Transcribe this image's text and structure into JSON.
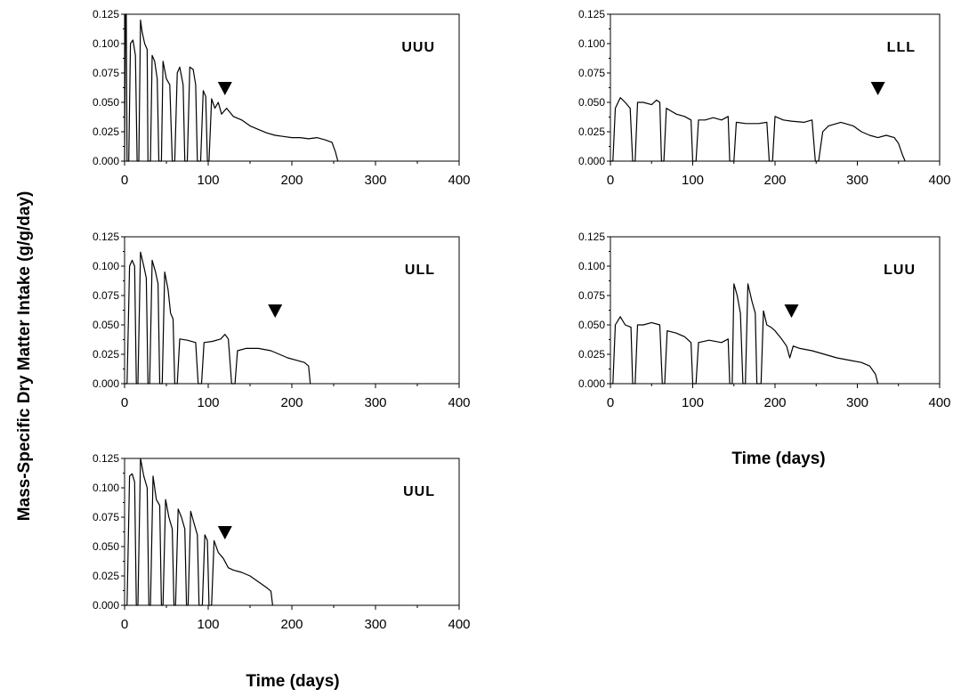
{
  "figure": {
    "ylabel": "Mass-Specific Dry Matter Intake (g/g/day)",
    "xlabel": "Time (days)"
  },
  "chart_data": [
    {
      "type": "line",
      "panel": "UUU",
      "xlim": [
        0,
        400
      ],
      "ylim": [
        0,
        0.125
      ],
      "x_ticks": [
        0,
        100,
        200,
        300,
        400
      ],
      "y_ticks": [
        "0.000",
        "0.025",
        "0.050",
        "0.075",
        "0.100",
        "0.125"
      ],
      "marker_x": 120,
      "points": [
        [
          0,
          0
        ],
        [
          1,
          0.125
        ],
        [
          2,
          0.125
        ],
        [
          3,
          0
        ],
        [
          5,
          0
        ],
        [
          7,
          0.1
        ],
        [
          10,
          0.103
        ],
        [
          13,
          0.09
        ],
        [
          15,
          0
        ],
        [
          17,
          0
        ],
        [
          19,
          0.12
        ],
        [
          21,
          0.11
        ],
        [
          24,
          0.1
        ],
        [
          27,
          0.095
        ],
        [
          28,
          0
        ],
        [
          31,
          0
        ],
        [
          33,
          0.09
        ],
        [
          36,
          0.085
        ],
        [
          39,
          0.07
        ],
        [
          41,
          0
        ],
        [
          44,
          0
        ],
        [
          46,
          0.085
        ],
        [
          50,
          0.07
        ],
        [
          54,
          0.065
        ],
        [
          57,
          0
        ],
        [
          60,
          0
        ],
        [
          63,
          0.075
        ],
        [
          66,
          0.08
        ],
        [
          70,
          0.065
        ],
        [
          72,
          0
        ],
        [
          75,
          0
        ],
        [
          78,
          0.08
        ],
        [
          82,
          0.078
        ],
        [
          85,
          0.065
        ],
        [
          87,
          0
        ],
        [
          91,
          0
        ],
        [
          94,
          0.06
        ],
        [
          97,
          0.055
        ],
        [
          99,
          0
        ],
        [
          101,
          0
        ],
        [
          104,
          0.053
        ],
        [
          108,
          0.045
        ],
        [
          112,
          0.05
        ],
        [
          116,
          0.04
        ],
        [
          122,
          0.045
        ],
        [
          130,
          0.038
        ],
        [
          140,
          0.035
        ],
        [
          150,
          0.03
        ],
        [
          160,
          0.027
        ],
        [
          170,
          0.024
        ],
        [
          180,
          0.022
        ],
        [
          190,
          0.021
        ],
        [
          200,
          0.02
        ],
        [
          210,
          0.02
        ],
        [
          220,
          0.019
        ],
        [
          230,
          0.02
        ],
        [
          240,
          0.018
        ],
        [
          248,
          0.016
        ],
        [
          252,
          0.008
        ],
        [
          255,
          0
        ]
      ]
    },
    {
      "type": "line",
      "panel": "LLL",
      "xlim": [
        0,
        400
      ],
      "ylim": [
        0,
        0.125
      ],
      "x_ticks": [
        0,
        100,
        200,
        300,
        400
      ],
      "y_ticks": [
        "0.000",
        "0.025",
        "0.050",
        "0.075",
        "0.100",
        "0.125"
      ],
      "marker_x": 325,
      "points": [
        [
          0,
          0
        ],
        [
          3,
          0
        ],
        [
          6,
          0.045
        ],
        [
          12,
          0.054
        ],
        [
          18,
          0.05
        ],
        [
          24,
          0.045
        ],
        [
          27,
          0
        ],
        [
          30,
          0
        ],
        [
          33,
          0.05
        ],
        [
          40,
          0.05
        ],
        [
          50,
          0.048
        ],
        [
          56,
          0.052
        ],
        [
          60,
          0.05
        ],
        [
          62,
          0
        ],
        [
          65,
          0
        ],
        [
          68,
          0.045
        ],
        [
          80,
          0.04
        ],
        [
          90,
          0.038
        ],
        [
          98,
          0.035
        ],
        [
          100,
          0
        ],
        [
          104,
          0
        ],
        [
          107,
          0.035
        ],
        [
          115,
          0.035
        ],
        [
          125,
          0.037
        ],
        [
          135,
          0.035
        ],
        [
          143,
          0.038
        ],
        [
          145,
          0
        ],
        [
          150,
          0
        ],
        [
          153,
          0.033
        ],
        [
          165,
          0.032
        ],
        [
          180,
          0.032
        ],
        [
          190,
          0.033
        ],
        [
          193,
          0
        ],
        [
          197,
          0
        ],
        [
          200,
          0.038
        ],
        [
          210,
          0.035
        ],
        [
          220,
          0.034
        ],
        [
          235,
          0.033
        ],
        [
          245,
          0.035
        ],
        [
          249,
          0
        ],
        [
          253,
          0
        ],
        [
          258,
          0.025
        ],
        [
          265,
          0.03
        ],
        [
          280,
          0.033
        ],
        [
          295,
          0.03
        ],
        [
          305,
          0.025
        ],
        [
          315,
          0.022
        ],
        [
          325,
          0.02
        ],
        [
          335,
          0.022
        ],
        [
          345,
          0.02
        ],
        [
          350,
          0.015
        ],
        [
          355,
          0.005
        ],
        [
          358,
          0
        ]
      ]
    },
    {
      "type": "line",
      "panel": "ULL",
      "xlim": [
        0,
        400
      ],
      "ylim": [
        0,
        0.125
      ],
      "x_ticks": [
        0,
        100,
        200,
        300,
        400
      ],
      "y_ticks": [
        "0.000",
        "0.025",
        "0.050",
        "0.075",
        "0.100",
        "0.125"
      ],
      "marker_x": 180,
      "points": [
        [
          0,
          0
        ],
        [
          3,
          0
        ],
        [
          6,
          0.1
        ],
        [
          9,
          0.105
        ],
        [
          12,
          0.1
        ],
        [
          14,
          0
        ],
        [
          16,
          0
        ],
        [
          19,
          0.112
        ],
        [
          23,
          0.1
        ],
        [
          26,
          0.09
        ],
        [
          28,
          0
        ],
        [
          30,
          0
        ],
        [
          33,
          0.105
        ],
        [
          37,
          0.095
        ],
        [
          40,
          0.085
        ],
        [
          42,
          0
        ],
        [
          45,
          0
        ],
        [
          48,
          0.095
        ],
        [
          52,
          0.08
        ],
        [
          55,
          0.06
        ],
        [
          58,
          0.055
        ],
        [
          60,
          0
        ],
        [
          63,
          0
        ],
        [
          66,
          0.038
        ],
        [
          75,
          0.037
        ],
        [
          85,
          0.035
        ],
        [
          88,
          0
        ],
        [
          92,
          0
        ],
        [
          95,
          0.035
        ],
        [
          105,
          0.036
        ],
        [
          115,
          0.038
        ],
        [
          120,
          0.042
        ],
        [
          124,
          0.038
        ],
        [
          128,
          0
        ],
        [
          132,
          0
        ],
        [
          135,
          0.028
        ],
        [
          145,
          0.03
        ],
        [
          160,
          0.03
        ],
        [
          175,
          0.028
        ],
        [
          185,
          0.025
        ],
        [
          195,
          0.022
        ],
        [
          205,
          0.02
        ],
        [
          215,
          0.018
        ],
        [
          220,
          0.015
        ],
        [
          222,
          0
        ]
      ]
    },
    {
      "type": "line",
      "panel": "LUU",
      "xlim": [
        0,
        400
      ],
      "ylim": [
        0,
        0.125
      ],
      "x_ticks": [
        0,
        100,
        200,
        300,
        400
      ],
      "y_ticks": [
        "0.000",
        "0.025",
        "0.050",
        "0.075",
        "0.100",
        "0.125"
      ],
      "marker_x": 220,
      "points": [
        [
          0,
          0
        ],
        [
          3,
          0
        ],
        [
          6,
          0.05
        ],
        [
          12,
          0.057
        ],
        [
          18,
          0.05
        ],
        [
          25,
          0.048
        ],
        [
          27,
          0
        ],
        [
          30,
          0
        ],
        [
          33,
          0.05
        ],
        [
          40,
          0.05
        ],
        [
          50,
          0.052
        ],
        [
          60,
          0.05
        ],
        [
          63,
          0
        ],
        [
          66,
          0
        ],
        [
          69,
          0.045
        ],
        [
          80,
          0.043
        ],
        [
          90,
          0.04
        ],
        [
          98,
          0.035
        ],
        [
          100,
          0
        ],
        [
          104,
          0
        ],
        [
          107,
          0.035
        ],
        [
          120,
          0.037
        ],
        [
          135,
          0.035
        ],
        [
          143,
          0.038
        ],
        [
          145,
          0
        ],
        [
          148,
          0
        ],
        [
          150,
          0.085
        ],
        [
          154,
          0.075
        ],
        [
          158,
          0.06
        ],
        [
          161,
          0
        ],
        [
          164,
          0
        ],
        [
          167,
          0.085
        ],
        [
          172,
          0.07
        ],
        [
          176,
          0.06
        ],
        [
          178,
          0
        ],
        [
          183,
          0
        ],
        [
          186,
          0.062
        ],
        [
          190,
          0.05
        ],
        [
          195,
          0.048
        ],
        [
          200,
          0.045
        ],
        [
          208,
          0.038
        ],
        [
          214,
          0.032
        ],
        [
          218,
          0.022
        ],
        [
          222,
          0.032
        ],
        [
          230,
          0.03
        ],
        [
          245,
          0.028
        ],
        [
          260,
          0.025
        ],
        [
          275,
          0.022
        ],
        [
          290,
          0.02
        ],
        [
          305,
          0.018
        ],
        [
          315,
          0.015
        ],
        [
          322,
          0.008
        ],
        [
          325,
          0
        ]
      ]
    },
    {
      "type": "line",
      "panel": "UUL",
      "xlim": [
        0,
        400
      ],
      "ylim": [
        0,
        0.125
      ],
      "x_ticks": [
        0,
        100,
        200,
        300,
        400
      ],
      "y_ticks": [
        "0.000",
        "0.025",
        "0.050",
        "0.075",
        "0.100",
        "0.125"
      ],
      "marker_x": 120,
      "points": [
        [
          0,
          0
        ],
        [
          3,
          0
        ],
        [
          6,
          0.11
        ],
        [
          9,
          0.112
        ],
        [
          12,
          0.105
        ],
        [
          14,
          0
        ],
        [
          16,
          0
        ],
        [
          19,
          0.125
        ],
        [
          23,
          0.11
        ],
        [
          27,
          0.1
        ],
        [
          29,
          0
        ],
        [
          31,
          0
        ],
        [
          34,
          0.11
        ],
        [
          38,
          0.09
        ],
        [
          42,
          0.085
        ],
        [
          44,
          0
        ],
        [
          46,
          0
        ],
        [
          49,
          0.09
        ],
        [
          53,
          0.075
        ],
        [
          57,
          0.065
        ],
        [
          59,
          0
        ],
        [
          61,
          0
        ],
        [
          64,
          0.082
        ],
        [
          68,
          0.075
        ],
        [
          72,
          0.065
        ],
        [
          74,
          0
        ],
        [
          76,
          0
        ],
        [
          79,
          0.08
        ],
        [
          83,
          0.07
        ],
        [
          87,
          0.06
        ],
        [
          89,
          0
        ],
        [
          93,
          0
        ],
        [
          96,
          0.06
        ],
        [
          99,
          0.055
        ],
        [
          101,
          0
        ],
        [
          104,
          0
        ],
        [
          107,
          0.055
        ],
        [
          112,
          0.045
        ],
        [
          118,
          0.04
        ],
        [
          124,
          0.032
        ],
        [
          130,
          0.03
        ],
        [
          140,
          0.028
        ],
        [
          150,
          0.025
        ],
        [
          160,
          0.02
        ],
        [
          170,
          0.015
        ],
        [
          175,
          0.012
        ],
        [
          177,
          0
        ]
      ]
    }
  ]
}
